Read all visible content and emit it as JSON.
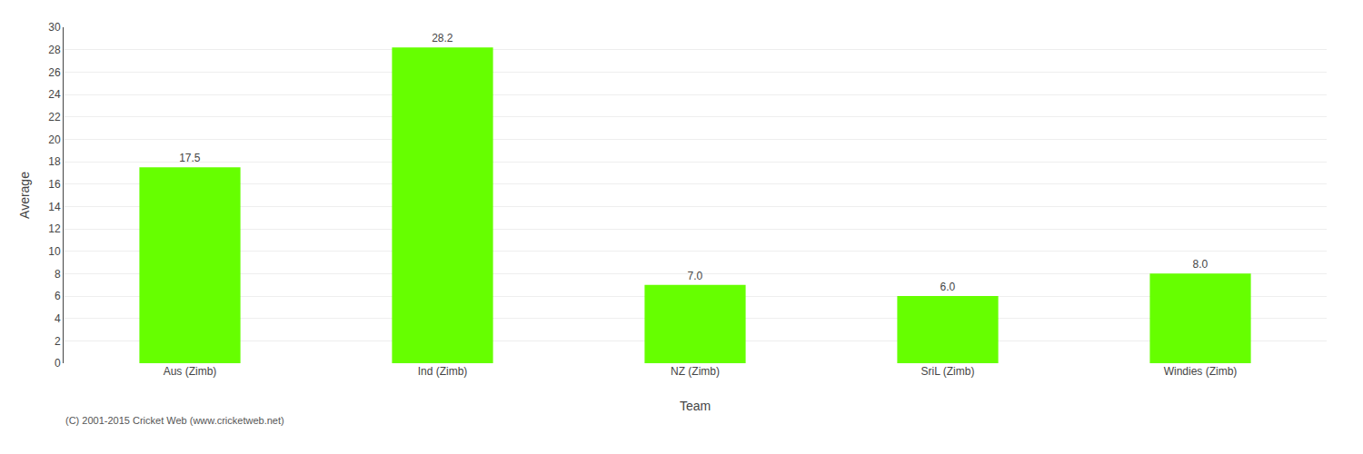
{
  "chart_data": {
    "type": "bar",
    "categories": [
      "Aus (Zimb)",
      "Ind (Zimb)",
      "NZ (Zimb)",
      "SriL (Zimb)",
      "Windies (Zimb)"
    ],
    "values": [
      17.5,
      28.2,
      7.0,
      6.0,
      8.0
    ],
    "value_labels": [
      "17.5",
      "28.2",
      "7.0",
      "6.0",
      "8.0"
    ],
    "data_labels": true,
    "color": "#66ff00",
    "xlabel": "Team",
    "ylabel": "Average",
    "ylim": [
      0,
      30
    ],
    "yticks": [
      0,
      2,
      4,
      6,
      8,
      10,
      12,
      14,
      16,
      18,
      20,
      22,
      24,
      26,
      28,
      30
    ],
    "grid": true,
    "annotations": [
      "(C) 2001-2015 Cricket Web (www.cricketweb.net)"
    ]
  }
}
